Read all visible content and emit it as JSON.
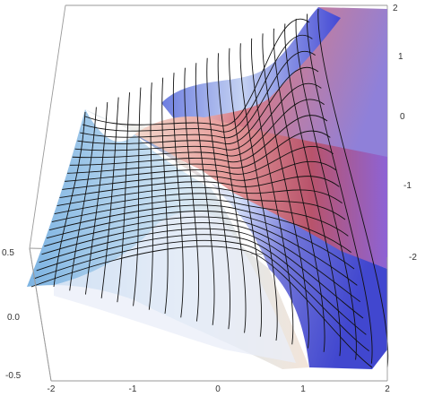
{
  "chart_data": {
    "type": "surface3d",
    "title": "",
    "xlabel": "",
    "ylabel": "",
    "zlabel": "",
    "x_ticks": [
      "-2",
      "-1",
      "0",
      "1",
      "2"
    ],
    "y_ticks": [
      "2",
      "1",
      "0",
      "-1",
      "-2"
    ],
    "z_ticks": [
      "0.5",
      "0.0",
      "-0.5"
    ],
    "x_range": [
      -2,
      2
    ],
    "y_range": [
      -2,
      2
    ],
    "z_range": [
      -0.5,
      0.5
    ],
    "mesh_lines": 22,
    "colors": {
      "surface_red": "#cc5566",
      "surface_white": "#f5f1ee",
      "surface_blue": "#4f55d6",
      "mesh": "#111111",
      "box": "#9a9a9a"
    }
  }
}
